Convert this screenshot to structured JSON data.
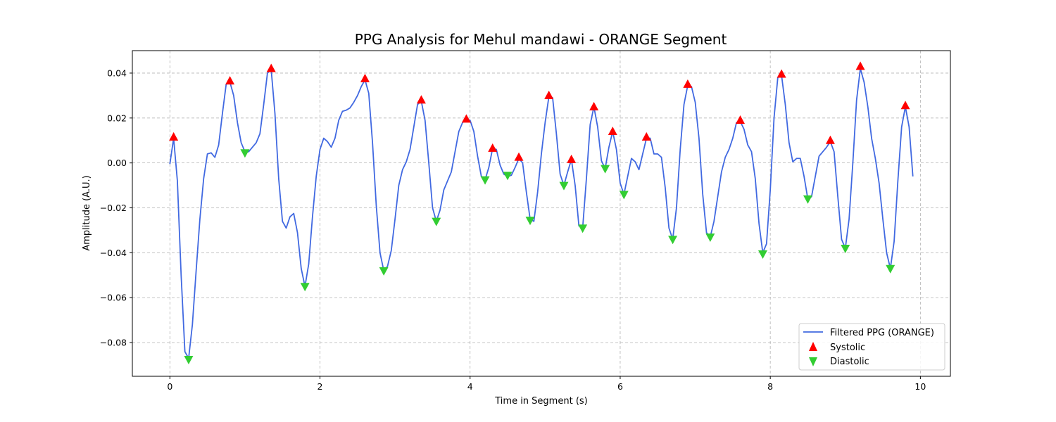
{
  "chart_data": {
    "type": "line",
    "title": "PPG Analysis for Mehul mandawi - ORANGE Segment",
    "xlabel": "Time in Segment (s)",
    "ylabel": "Amplitude (A.U.)",
    "xlim": [
      -0.5,
      10.4
    ],
    "ylim": [
      -0.095,
      0.05
    ],
    "xticks": [
      0,
      2,
      4,
      6,
      8,
      10
    ],
    "yticks": [
      -0.08,
      -0.06,
      -0.04,
      -0.02,
      0.0,
      0.02,
      0.04
    ],
    "xtick_labels": [
      "0",
      "2",
      "4",
      "6",
      "8",
      "10"
    ],
    "ytick_labels": [
      "−0.08",
      "−0.06",
      "−0.04",
      "−0.02",
      "0.00",
      "0.02",
      "0.04"
    ],
    "grid": true,
    "legend_position": "lower-right",
    "colors": {
      "line": "#4169e1",
      "systolic": "#ff0000",
      "diastolic": "#32cd32"
    },
    "series": [
      {
        "name": "Filtered PPG (ORANGE)",
        "kind": "line",
        "points": [
          [
            0.0,
            -0.0005
          ],
          [
            0.05,
            0.011
          ],
          [
            0.1,
            -0.008
          ],
          [
            0.15,
            -0.05
          ],
          [
            0.2,
            -0.084
          ],
          [
            0.25,
            -0.087
          ],
          [
            0.3,
            -0.072
          ],
          [
            0.35,
            -0.048
          ],
          [
            0.4,
            -0.025
          ],
          [
            0.45,
            -0.007
          ],
          [
            0.5,
            0.004
          ],
          [
            0.55,
            0.0045
          ],
          [
            0.6,
            0.0025
          ],
          [
            0.65,
            0.008
          ],
          [
            0.7,
            0.022
          ],
          [
            0.75,
            0.035
          ],
          [
            0.8,
            0.036
          ],
          [
            0.85,
            0.03
          ],
          [
            0.9,
            0.018
          ],
          [
            0.95,
            0.009
          ],
          [
            1.0,
            0.005
          ],
          [
            1.05,
            0.005
          ],
          [
            1.1,
            0.007
          ],
          [
            1.15,
            0.009
          ],
          [
            1.2,
            0.013
          ],
          [
            1.25,
            0.026
          ],
          [
            1.3,
            0.04
          ],
          [
            1.35,
            0.0415
          ],
          [
            1.4,
            0.022
          ],
          [
            1.45,
            -0.007
          ],
          [
            1.5,
            -0.026
          ],
          [
            1.55,
            -0.029
          ],
          [
            1.6,
            -0.024
          ],
          [
            1.65,
            -0.0225
          ],
          [
            1.7,
            -0.031
          ],
          [
            1.75,
            -0.047
          ],
          [
            1.8,
            -0.055
          ],
          [
            1.85,
            -0.045
          ],
          [
            1.9,
            -0.024
          ],
          [
            1.95,
            -0.006
          ],
          [
            2.0,
            0.006
          ],
          [
            2.05,
            0.011
          ],
          [
            2.1,
            0.0095
          ],
          [
            2.15,
            0.007
          ],
          [
            2.2,
            0.011
          ],
          [
            2.25,
            0.019
          ],
          [
            2.3,
            0.023
          ],
          [
            2.35,
            0.0235
          ],
          [
            2.4,
            0.0245
          ],
          [
            2.45,
            0.027
          ],
          [
            2.5,
            0.03
          ],
          [
            2.55,
            0.034
          ],
          [
            2.6,
            0.037
          ],
          [
            2.65,
            0.031
          ],
          [
            2.7,
            0.009
          ],
          [
            2.75,
            -0.019
          ],
          [
            2.8,
            -0.04
          ],
          [
            2.85,
            -0.048
          ],
          [
            2.9,
            -0.046
          ],
          [
            2.95,
            -0.039
          ],
          [
            3.0,
            -0.025
          ],
          [
            3.05,
            -0.01
          ],
          [
            3.1,
            -0.003
          ],
          [
            3.15,
            0.0005
          ],
          [
            3.2,
            0.006
          ],
          [
            3.25,
            0.016
          ],
          [
            3.3,
            0.026
          ],
          [
            3.35,
            0.0275
          ],
          [
            3.4,
            0.019
          ],
          [
            3.45,
            0.0
          ],
          [
            3.5,
            -0.02
          ],
          [
            3.55,
            -0.026
          ],
          [
            3.6,
            -0.021
          ],
          [
            3.65,
            -0.012
          ],
          [
            3.7,
            -0.008
          ],
          [
            3.75,
            -0.004
          ],
          [
            3.8,
            0.005
          ],
          [
            3.85,
            0.014
          ],
          [
            3.9,
            0.018
          ],
          [
            3.95,
            0.0195
          ],
          [
            4.0,
            0.019
          ],
          [
            4.05,
            0.014
          ],
          [
            4.1,
            0.003
          ],
          [
            4.15,
            -0.006
          ],
          [
            4.2,
            -0.0075
          ],
          [
            4.25,
            -0.002
          ],
          [
            4.3,
            0.0065
          ],
          [
            4.35,
            0.006
          ],
          [
            4.4,
            -0.001
          ],
          [
            4.45,
            -0.005
          ],
          [
            4.5,
            -0.006
          ],
          [
            4.55,
            -0.0055
          ],
          [
            4.6,
            -0.002
          ],
          [
            4.65,
            0.002
          ],
          [
            4.7,
            0.0
          ],
          [
            4.75,
            -0.013
          ],
          [
            4.8,
            -0.025
          ],
          [
            4.85,
            -0.026
          ],
          [
            4.9,
            -0.013
          ],
          [
            4.95,
            0.004
          ],
          [
            5.0,
            0.018
          ],
          [
            5.05,
            0.0295
          ],
          [
            5.1,
            0.029
          ],
          [
            5.15,
            0.013
          ],
          [
            5.2,
            -0.005
          ],
          [
            5.25,
            -0.01
          ],
          [
            5.3,
            -0.004
          ],
          [
            5.35,
            0.0015
          ],
          [
            5.4,
            -0.01
          ],
          [
            5.45,
            -0.028
          ],
          [
            5.5,
            -0.029
          ],
          [
            5.55,
            -0.007
          ],
          [
            5.6,
            0.017
          ],
          [
            5.65,
            0.025
          ],
          [
            5.7,
            0.016
          ],
          [
            5.75,
            0.001
          ],
          [
            5.8,
            -0.0025
          ],
          [
            5.85,
            0.007
          ],
          [
            5.9,
            0.014
          ],
          [
            5.95,
            0.006
          ],
          [
            6.0,
            -0.009
          ],
          [
            6.05,
            -0.014
          ],
          [
            6.1,
            -0.006
          ],
          [
            6.15,
            0.002
          ],
          [
            6.2,
            0.0005
          ],
          [
            6.25,
            -0.003
          ],
          [
            6.3,
            0.004
          ],
          [
            6.35,
            0.011
          ],
          [
            6.4,
            0.011
          ],
          [
            6.45,
            0.004
          ],
          [
            6.5,
            0.004
          ],
          [
            6.55,
            0.0025
          ],
          [
            6.6,
            -0.011
          ],
          [
            6.65,
            -0.029
          ],
          [
            6.7,
            -0.034
          ],
          [
            6.75,
            -0.02
          ],
          [
            6.8,
            0.006
          ],
          [
            6.85,
            0.026
          ],
          [
            6.9,
            0.0345
          ],
          [
            6.95,
            0.034
          ],
          [
            7.0,
            0.027
          ],
          [
            7.05,
            0.011
          ],
          [
            7.1,
            -0.014
          ],
          [
            7.15,
            -0.031
          ],
          [
            7.2,
            -0.033
          ],
          [
            7.25,
            -0.026
          ],
          [
            7.3,
            -0.015
          ],
          [
            7.35,
            -0.004
          ],
          [
            7.4,
            0.0025
          ],
          [
            7.45,
            0.006
          ],
          [
            7.5,
            0.011
          ],
          [
            7.55,
            0.018
          ],
          [
            7.6,
            0.0185
          ],
          [
            7.65,
            0.015
          ],
          [
            7.7,
            0.008
          ],
          [
            7.75,
            0.005
          ],
          [
            7.8,
            -0.007
          ],
          [
            7.85,
            -0.027
          ],
          [
            7.9,
            -0.04
          ],
          [
            7.95,
            -0.036
          ],
          [
            8.0,
            -0.012
          ],
          [
            8.05,
            0.02
          ],
          [
            8.1,
            0.038
          ],
          [
            8.15,
            0.039
          ],
          [
            8.2,
            0.026
          ],
          [
            8.25,
            0.009
          ],
          [
            8.3,
            0.0005
          ],
          [
            8.35,
            0.002
          ],
          [
            8.4,
            0.002
          ],
          [
            8.45,
            -0.006
          ],
          [
            8.5,
            -0.016
          ],
          [
            8.55,
            -0.015
          ],
          [
            8.6,
            -0.006
          ],
          [
            8.65,
            0.003
          ],
          [
            8.7,
            0.005
          ],
          [
            8.75,
            0.007
          ],
          [
            8.8,
            0.0095
          ],
          [
            8.85,
            0.005
          ],
          [
            8.9,
            -0.015
          ],
          [
            8.95,
            -0.034
          ],
          [
            9.0,
            -0.038
          ],
          [
            9.05,
            -0.025
          ],
          [
            9.1,
            0.0
          ],
          [
            9.15,
            0.028
          ],
          [
            9.2,
            0.042
          ],
          [
            9.25,
            0.036
          ],
          [
            9.3,
            0.025
          ],
          [
            9.35,
            0.011
          ],
          [
            9.4,
            0.002
          ],
          [
            9.45,
            -0.009
          ],
          [
            9.5,
            -0.025
          ],
          [
            9.55,
            -0.04
          ],
          [
            9.6,
            -0.047
          ],
          [
            9.65,
            -0.035
          ],
          [
            9.7,
            -0.008
          ],
          [
            9.75,
            0.016
          ],
          [
            9.8,
            0.025
          ],
          [
            9.85,
            0.016
          ],
          [
            9.9,
            -0.006
          ]
        ]
      },
      {
        "name": "Systolic",
        "kind": "marker-up",
        "points": [
          [
            0.05,
            0.0115
          ],
          [
            0.8,
            0.0365
          ],
          [
            1.35,
            0.042
          ],
          [
            2.6,
            0.0375
          ],
          [
            3.35,
            0.028
          ],
          [
            3.95,
            0.0195
          ],
          [
            4.3,
            0.0065
          ],
          [
            4.65,
            0.0025
          ],
          [
            5.05,
            0.03
          ],
          [
            5.35,
            0.0015
          ],
          [
            5.65,
            0.025
          ],
          [
            5.9,
            0.014
          ],
          [
            6.35,
            0.0115
          ],
          [
            6.9,
            0.035
          ],
          [
            7.6,
            0.019
          ],
          [
            8.15,
            0.0395
          ],
          [
            8.8,
            0.01
          ],
          [
            9.2,
            0.043
          ],
          [
            9.8,
            0.0255
          ]
        ]
      },
      {
        "name": "Diastolic",
        "kind": "marker-down",
        "points": [
          [
            0.25,
            -0.0875
          ],
          [
            1.0,
            0.0045
          ],
          [
            1.8,
            -0.055
          ],
          [
            2.85,
            -0.048
          ],
          [
            3.55,
            -0.026
          ],
          [
            4.2,
            -0.0075
          ],
          [
            4.5,
            -0.0055
          ],
          [
            4.8,
            -0.0255
          ],
          [
            5.25,
            -0.01
          ],
          [
            5.5,
            -0.029
          ],
          [
            5.8,
            -0.0025
          ],
          [
            6.05,
            -0.014
          ],
          [
            6.7,
            -0.034
          ],
          [
            7.2,
            -0.033
          ],
          [
            7.9,
            -0.0405
          ],
          [
            8.5,
            -0.016
          ],
          [
            9.0,
            -0.038
          ],
          [
            9.6,
            -0.047
          ]
        ]
      }
    ]
  }
}
